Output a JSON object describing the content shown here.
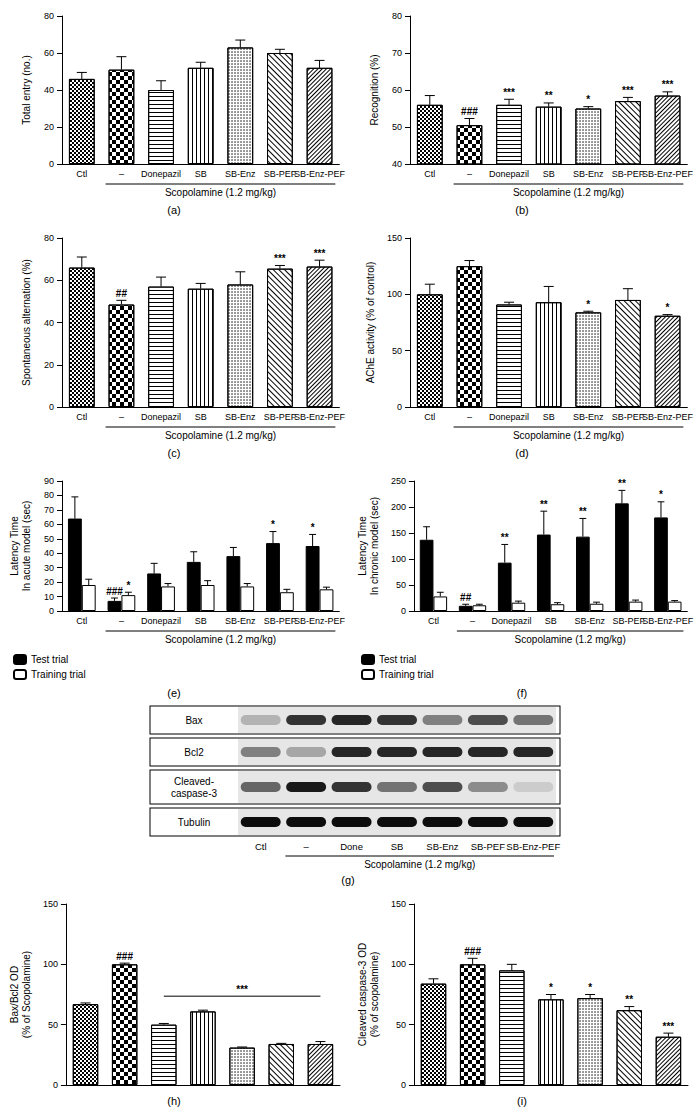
{
  "chart_data": [
    {
      "panel": "(a)",
      "type": "bar",
      "ylabel": "Total entry (no.)",
      "categories": [
        "Ctl",
        "–",
        "Donepazil",
        "SB",
        "SB-Enz",
        "SB-PEF",
        "SB-Enz-PEF"
      ],
      "group_label": "Scopolamine (1.2 mg/kg)",
      "color": "#000000",
      "values": [
        46,
        51,
        40,
        52,
        63,
        60,
        52
      ],
      "errors": [
        3.5,
        7,
        5,
        3,
        4,
        2,
        4
      ],
      "annotations": [
        null,
        null,
        null,
        null,
        null,
        null,
        null
      ],
      "ylim": [
        0,
        80
      ],
      "yticks": [
        0,
        20,
        40,
        60,
        80
      ]
    },
    {
      "panel": "(b)",
      "type": "bar",
      "ylabel": "Recognition (%)",
      "categories": [
        "Ctl",
        "–",
        "Donepazil",
        "SB",
        "SB-Enz",
        "SB-PEF",
        "SB-Enz-PEF"
      ],
      "group_label": "Scopolamine (1.2 mg/kg)",
      "color": "#000000",
      "values": [
        56,
        50.5,
        56,
        55.5,
        55,
        57,
        58.5
      ],
      "errors": [
        2.5,
        1.8,
        1.5,
        1,
        0.5,
        1,
        1
      ],
      "annotations": [
        null,
        "###",
        "***",
        "**",
        "*",
        "***",
        "***"
      ],
      "ylim": [
        40,
        80
      ],
      "yticks": [
        40,
        50,
        60,
        70,
        80
      ]
    },
    {
      "panel": "(c)",
      "type": "bar",
      "ylabel": "Spontaneous alternation (%)",
      "categories": [
        "Ctl",
        "–",
        "Donepazil",
        "SB",
        "SB-Enz",
        "SB-PEF",
        "SB-Enz-PEF"
      ],
      "group_label": "Scopolamine (1.2 mg/kg)",
      "color": "#000000",
      "values": [
        66,
        48.5,
        57,
        56,
        58,
        65.5,
        66.5
      ],
      "errors": [
        5,
        2,
        4.5,
        2.5,
        6,
        1.5,
        3
      ],
      "annotations": [
        null,
        "##",
        null,
        null,
        null,
        "***",
        "***"
      ],
      "ylim": [
        0,
        80
      ],
      "yticks": [
        0,
        20,
        40,
        60,
        80
      ]
    },
    {
      "panel": "(d)",
      "type": "bar",
      "ylabel": "AChE activity (% of control)",
      "categories": [
        "Ctl",
        "–",
        "Donepazil",
        "SB",
        "SB-Enz",
        "SB-PEF",
        "SB-Enz-PEF"
      ],
      "group_label": "Scopolamine (1.2 mg/kg)",
      "color": "#000000",
      "values": [
        100,
        125,
        91,
        93,
        84,
        95,
        81
      ],
      "errors": [
        9,
        5,
        2,
        14,
        1,
        10,
        1
      ],
      "annotations": [
        null,
        null,
        null,
        null,
        "*",
        null,
        "*"
      ],
      "ylim": [
        0,
        150
      ],
      "yticks": [
        0,
        50,
        100,
        150
      ]
    },
    {
      "panel": "(e)",
      "type": "bar",
      "ylabel": "Latency Time\nIn acute model (sec)",
      "categories": [
        "Ctl",
        "–",
        "Donepazil",
        "SB",
        "SB-Enz",
        "SB-PEF",
        "SB-Enz-PEF"
      ],
      "group_label": "Scopolamine (1.2 mg/kg)",
      "legend": "bottom-left",
      "series": [
        {
          "name": "Test trial",
          "color": "#000000",
          "values": [
            64,
            7,
            26,
            34,
            38,
            47,
            45
          ],
          "errors": [
            15,
            2,
            7,
            7,
            6,
            8,
            8
          ],
          "annotations": [
            null,
            "###",
            null,
            null,
            null,
            "*",
            "*"
          ]
        },
        {
          "name": "Training trial",
          "color": "#ffffff",
          "values": [
            18,
            11,
            17,
            18,
            17,
            13,
            15
          ],
          "errors": [
            4,
            2,
            2,
            3,
            2,
            2,
            1.5
          ],
          "annotations": [
            null,
            "*",
            null,
            null,
            null,
            null,
            null
          ]
        }
      ],
      "ylim": [
        0,
        90
      ],
      "yticks": [
        0,
        10,
        20,
        30,
        40,
        50,
        60,
        70,
        80,
        90
      ]
    },
    {
      "panel": "(f)",
      "type": "bar",
      "ylabel": "Latency Time\nIn chronic model (sec)",
      "categories": [
        "Ctl",
        "–",
        "Donepazil",
        "SB",
        "SB-Enz",
        "SB-PEF",
        "SB-Enz-PEF"
      ],
      "group_label": "Scopolamine (1.2 mg/kg)",
      "legend": "bottom-left",
      "series": [
        {
          "name": "Test trial",
          "color": "#000000",
          "values": [
            137,
            10,
            93,
            147,
            143,
            207,
            180
          ],
          "errors": [
            25,
            3,
            35,
            45,
            35,
            25,
            30
          ],
          "annotations": [
            null,
            "##",
            "**",
            "**",
            "**",
            "**",
            "*"
          ]
        },
        {
          "name": "Training trial",
          "color": "#ffffff",
          "values": [
            28,
            11,
            16,
            13,
            14,
            18,
            18
          ],
          "errors": [
            8,
            2,
            3,
            3,
            3,
            3,
            2
          ],
          "annotations": [
            null,
            null,
            null,
            null,
            null,
            null,
            null
          ]
        }
      ],
      "ylim": [
        0,
        250
      ],
      "yticks": [
        0,
        50,
        100,
        150,
        200,
        250
      ]
    },
    {
      "panel": "(h)",
      "type": "bar",
      "ylabel": "Bax/Bcl2 OD\n(% of Scopolamine)",
      "categories": [
        null,
        null,
        null,
        null,
        null,
        null,
        null
      ],
      "color": "#000000",
      "values": [
        67,
        100,
        50,
        61,
        31,
        34,
        34
      ],
      "errors": [
        1,
        1,
        1,
        1,
        0.5,
        0.5,
        2
      ],
      "annotations": [
        null,
        "###",
        null,
        null,
        null,
        null,
        null
      ],
      "bracket": {
        "from": 2,
        "to": 6,
        "label": "***"
      },
      "ylim": [
        0,
        150
      ],
      "yticks": [
        0,
        50,
        100,
        150
      ]
    },
    {
      "panel": "(i)",
      "type": "bar",
      "ylabel": "Cleaved caspase-3 OD\n(% of scopolamine)",
      "categories": [
        null,
        null,
        null,
        null,
        null,
        null,
        null
      ],
      "color": "#000000",
      "values": [
        84,
        100,
        95,
        71,
        72,
        62,
        40
      ],
      "errors": [
        4,
        5,
        5,
        4,
        3,
        3,
        3
      ],
      "annotations": [
        null,
        "###",
        null,
        "*",
        "*",
        "**",
        "***"
      ],
      "ylim": [
        0,
        150
      ],
      "yticks": [
        0,
        50,
        100,
        150
      ]
    }
  ],
  "blot": {
    "panel": "(g)",
    "lanes": [
      "Ctl",
      "–",
      "Done",
      "SB",
      "SB-Enz",
      "SB-PEF",
      "SB-Enz-PEF"
    ],
    "group_label": "Scopolamine (1.2 mg/kg)",
    "rows": [
      {
        "label": "Bax",
        "bands": [
          0.3,
          0.8,
          0.85,
          0.8,
          0.5,
          0.7,
          0.55
        ]
      },
      {
        "label": "Bcl2",
        "bands": [
          0.5,
          0.35,
          0.85,
          0.85,
          0.85,
          0.85,
          0.85
        ]
      },
      {
        "label": "Cleaved-\ncaspase-3",
        "bands": [
          0.6,
          0.9,
          0.8,
          0.55,
          0.7,
          0.45,
          0.2
        ]
      },
      {
        "label": "Tubulin",
        "bands": [
          0.95,
          0.95,
          0.95,
          0.95,
          0.95,
          0.95,
          0.95
        ]
      }
    ]
  }
}
